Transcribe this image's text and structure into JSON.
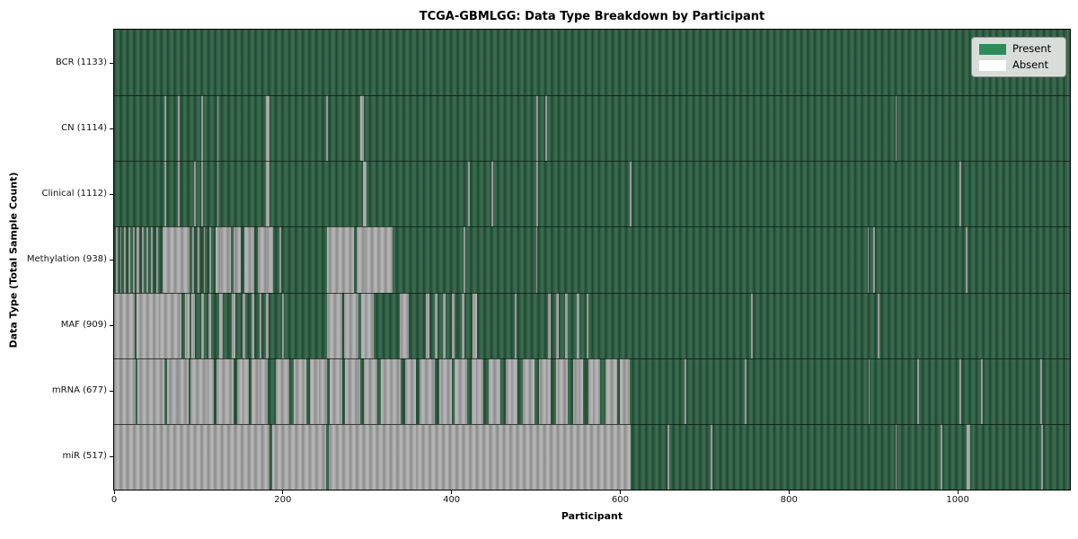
{
  "chart_data": {
    "type": "heatmap",
    "title": "TCGA-GBMLGG: Data Type Breakdown by Participant",
    "xlabel": "Participant",
    "ylabel": "Data Type (Total Sample Count)",
    "x_max": 1133,
    "x_ticks": [
      0,
      200,
      400,
      600,
      800,
      1000
    ],
    "grid": false,
    "legend_position": "upper-right",
    "colors": {
      "present_bar": "#2e5c42",
      "absent_bar": "#a8a8a8",
      "present_legend": "#2e8b57",
      "absent_legend": "#ffffff",
      "plot_border": "#000000",
      "legend_bg": "#d9ddd9"
    },
    "rows": [
      {
        "name": "BCR",
        "count": 1133,
        "label": "BCR (1133)",
        "absent_segments": []
      },
      {
        "name": "CN",
        "count": 1114,
        "label": "CN (1114)",
        "absent_segments": [
          [
            60,
            62
          ],
          [
            76,
            78
          ],
          [
            103,
            105
          ],
          [
            122,
            124
          ],
          [
            180,
            184
          ],
          [
            251,
            253
          ],
          [
            292,
            296
          ],
          [
            501,
            503
          ],
          [
            511,
            513
          ],
          [
            926,
            928
          ]
        ]
      },
      {
        "name": "Clinical",
        "count": 1112,
        "label": "Clinical (1112)",
        "absent_segments": [
          [
            60,
            62
          ],
          [
            76,
            78
          ],
          [
            95,
            97
          ],
          [
            103,
            105
          ],
          [
            122,
            124
          ],
          [
            180,
            184
          ],
          [
            295,
            299
          ],
          [
            420,
            422
          ],
          [
            447,
            449
          ],
          [
            501,
            503
          ],
          [
            611,
            613
          ],
          [
            1002,
            1004
          ]
        ]
      },
      {
        "name": "Methylation",
        "count": 938,
        "label": "Methylation (938)",
        "absent_segments": [
          [
            2,
            4
          ],
          [
            7,
            9
          ],
          [
            12,
            14
          ],
          [
            17,
            19
          ],
          [
            22,
            24
          ],
          [
            27,
            30
          ],
          [
            33,
            35
          ],
          [
            38,
            40
          ],
          [
            44,
            46
          ],
          [
            50,
            52
          ],
          [
            57,
            89
          ],
          [
            93,
            95
          ],
          [
            99,
            101
          ],
          [
            106,
            108
          ],
          [
            113,
            115
          ],
          [
            120,
            138
          ],
          [
            142,
            150
          ],
          [
            154,
            166
          ],
          [
            170,
            188
          ],
          [
            196,
            198
          ],
          [
            252,
            284
          ],
          [
            288,
            330
          ],
          [
            414,
            416
          ],
          [
            500,
            502
          ],
          [
            893,
            895
          ],
          [
            900,
            902
          ],
          [
            1010,
            1012
          ]
        ]
      },
      {
        "name": "MAF",
        "count": 909,
        "label": "MAF (909)",
        "absent_segments": [
          [
            0,
            24
          ],
          [
            27,
            80
          ],
          [
            84,
            89
          ],
          [
            92,
            96
          ],
          [
            103,
            107
          ],
          [
            112,
            115
          ],
          [
            125,
            129
          ],
          [
            140,
            144
          ],
          [
            152,
            155
          ],
          [
            163,
            166
          ],
          [
            172,
            175
          ],
          [
            180,
            183
          ],
          [
            199,
            201
          ],
          [
            252,
            270
          ],
          [
            273,
            290
          ],
          [
            293,
            308
          ],
          [
            339,
            349
          ],
          [
            370,
            374
          ],
          [
            380,
            383
          ],
          [
            390,
            393
          ],
          [
            400,
            404
          ],
          [
            412,
            415
          ],
          [
            425,
            430
          ],
          [
            475,
            477
          ],
          [
            514,
            517
          ],
          [
            524,
            527
          ],
          [
            535,
            538
          ],
          [
            548,
            552
          ],
          [
            560,
            562
          ],
          [
            755,
            757
          ],
          [
            905,
            907
          ]
        ]
      },
      {
        "name": "mRNA",
        "count": 677,
        "label": "mRNA (677)",
        "absent_segments": [
          [
            0,
            26
          ],
          [
            28,
            60
          ],
          [
            63,
            88
          ],
          [
            91,
            118
          ],
          [
            121,
            142
          ],
          [
            146,
            160
          ],
          [
            163,
            182
          ],
          [
            192,
            208
          ],
          [
            213,
            228
          ],
          [
            232,
            252
          ],
          [
            256,
            270
          ],
          [
            274,
            292
          ],
          [
            296,
            312
          ],
          [
            316,
            340
          ],
          [
            345,
            358
          ],
          [
            362,
            380
          ],
          [
            385,
            400
          ],
          [
            404,
            418
          ],
          [
            424,
            438
          ],
          [
            444,
            458
          ],
          [
            464,
            478
          ],
          [
            484,
            498
          ],
          [
            504,
            518
          ],
          [
            524,
            538
          ],
          [
            544,
            556
          ],
          [
            562,
            576
          ],
          [
            582,
            596
          ],
          [
            600,
            611
          ],
          [
            676,
            678
          ],
          [
            748,
            750
          ],
          [
            894,
            896
          ],
          [
            952,
            954
          ],
          [
            1002,
            1004
          ],
          [
            1028,
            1030
          ],
          [
            1098,
            1100
          ]
        ]
      },
      {
        "name": "miR",
        "count": 517,
        "label": "miR (517)",
        "absent_segments": [
          [
            0,
            184
          ],
          [
            187,
            251
          ],
          [
            254,
            612
          ],
          [
            656,
            658
          ],
          [
            707,
            709
          ],
          [
            926,
            928
          ],
          [
            980,
            982
          ],
          [
            1011,
            1015
          ],
          [
            1099,
            1101
          ]
        ]
      }
    ]
  },
  "legend": {
    "items": [
      {
        "label": "Present",
        "color": "#2e8b57"
      },
      {
        "label": "Absent",
        "color": "#ffffff"
      }
    ]
  }
}
